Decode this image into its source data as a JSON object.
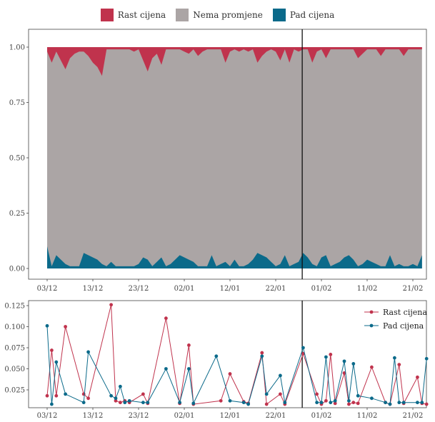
{
  "colors": {
    "rise": "#c0334d",
    "nochange": "#aba5a5",
    "fall": "#0b6a8a"
  },
  "chart_data": [
    {
      "type": "area",
      "stacked": true,
      "ylabel": "",
      "ylim": [
        0,
        1
      ],
      "yticks": [
        "0.00",
        "0.25",
        "0.50",
        "0.75",
        "1.00"
      ],
      "xticks": [
        "03/12",
        "13/12",
        "23/12",
        "02/01",
        "12/01",
        "22/01",
        "01/02",
        "11/02",
        "21/02"
      ],
      "legend_position": "top",
      "vertical_marker_day": 55.8,
      "series": [
        {
          "name": "Pad cijena",
          "days": [
            0,
            1,
            2,
            3,
            4,
            5,
            6,
            7,
            8,
            9,
            10,
            11,
            12,
            13,
            14,
            15,
            16,
            17,
            18,
            19,
            20,
            21,
            22,
            23,
            24,
            25,
            26,
            27,
            28,
            29,
            30,
            31,
            32,
            33,
            34,
            35,
            36,
            37,
            38,
            39,
            40,
            41,
            42,
            43,
            44,
            45,
            46,
            47,
            48,
            49,
            50,
            51,
            52,
            53,
            54,
            55,
            56,
            57,
            58,
            59,
            60,
            61,
            62,
            63,
            64,
            65,
            66,
            67,
            68,
            69,
            70,
            71,
            72,
            73,
            74,
            75,
            76,
            77,
            78,
            79,
            80,
            81,
            82
          ],
          "values": [
            0.1,
            0.01,
            0.06,
            0.04,
            0.02,
            0.01,
            0.01,
            0.01,
            0.07,
            0.06,
            0.05,
            0.04,
            0.02,
            0.01,
            0.03,
            0.01,
            0.01,
            0.01,
            0.01,
            0.01,
            0.02,
            0.05,
            0.04,
            0.01,
            0.03,
            0.05,
            0.01,
            0.02,
            0.04,
            0.06,
            0.05,
            0.04,
            0.03,
            0.01,
            0.01,
            0.01,
            0.06,
            0.01,
            0.02,
            0.03,
            0.01,
            0.04,
            0.01,
            0.01,
            0.02,
            0.04,
            0.07,
            0.06,
            0.05,
            0.03,
            0.01,
            0.02,
            0.06,
            0.01,
            0.02,
            0.03,
            0.07,
            0.05,
            0.02,
            0.01,
            0.05,
            0.06,
            0.01,
            0.02,
            0.03,
            0.05,
            0.06,
            0.04,
            0.01,
            0.02,
            0.04,
            0.03,
            0.02,
            0.01,
            0.01,
            0.06,
            0.01,
            0.02,
            0.01,
            0.01,
            0.02,
            0.01,
            0.06
          ]
        },
        {
          "name": "Rast cijena",
          "days": [
            0,
            1,
            2,
            3,
            4,
            5,
            6,
            7,
            8,
            9,
            10,
            11,
            12,
            13,
            14,
            15,
            16,
            17,
            18,
            19,
            20,
            21,
            22,
            23,
            24,
            25,
            26,
            27,
            28,
            29,
            30,
            31,
            32,
            33,
            34,
            35,
            36,
            37,
            38,
            39,
            40,
            41,
            42,
            43,
            44,
            45,
            46,
            47,
            48,
            49,
            50,
            51,
            52,
            53,
            54,
            55,
            56,
            57,
            58,
            59,
            60,
            61,
            62,
            63,
            64,
            65,
            66,
            67,
            68,
            69,
            70,
            71,
            72,
            73,
            74,
            75,
            76,
            77,
            78,
            79,
            80,
            81,
            82
          ],
          "values": [
            0.02,
            0.07,
            0.02,
            0.06,
            0.1,
            0.05,
            0.03,
            0.02,
            0.02,
            0.04,
            0.07,
            0.09,
            0.13,
            0.01,
            0.01,
            0.01,
            0.01,
            0.01,
            0.01,
            0.02,
            0.01,
            0.06,
            0.11,
            0.05,
            0.03,
            0.08,
            0.01,
            0.01,
            0.01,
            0.01,
            0.02,
            0.03,
            0.01,
            0.04,
            0.02,
            0.01,
            0.01,
            0.01,
            0.01,
            0.07,
            0.02,
            0.01,
            0.02,
            0.01,
            0.02,
            0.01,
            0.07,
            0.04,
            0.02,
            0.01,
            0.02,
            0.06,
            0.01,
            0.07,
            0.01,
            0.02,
            0.01,
            0.01,
            0.07,
            0.02,
            0.01,
            0.05,
            0.01,
            0.01,
            0.01,
            0.01,
            0.01,
            0.01,
            0.05,
            0.03,
            0.01,
            0.01,
            0.01,
            0.04,
            0.01,
            0.01,
            0.01,
            0.01,
            0.04,
            0.01,
            0.01,
            0.01,
            0.01
          ]
        },
        {
          "name": "Nema promjene",
          "note": "remainder to 1.00",
          "values": []
        }
      ]
    },
    {
      "type": "line",
      "ylabel": "",
      "ylim": [
        0.005,
        0.13
      ],
      "yticks": [
        "0.025",
        "0.050",
        "0.075",
        "0.100",
        "0.125"
      ],
      "xticks": [
        "03/12",
        "13/12",
        "23/12",
        "02/01",
        "12/01",
        "22/01",
        "01/02",
        "11/02",
        "21/02"
      ],
      "legend_position": "top-right",
      "vertical_marker_day": 55.8,
      "series": [
        {
          "name": "Rast cijena",
          "points": [
            [
              0,
              0.018
            ],
            [
              1,
              0.072
            ],
            [
              2,
              0.018
            ],
            [
              4,
              0.1
            ],
            [
              8,
              0.02
            ],
            [
              9,
              0.015
            ],
            [
              14,
              0.126
            ],
            [
              15,
              0.012
            ],
            [
              16,
              0.01
            ],
            [
              17,
              0.012
            ],
            [
              18,
              0.01
            ],
            [
              21,
              0.02
            ],
            [
              22,
              0.009
            ],
            [
              26,
              0.11
            ],
            [
              29,
              0.009
            ],
            [
              31,
              0.078
            ],
            [
              32,
              0.008
            ],
            [
              38,
              0.012
            ],
            [
              40,
              0.044
            ],
            [
              43,
              0.011
            ],
            [
              44,
              0.009
            ],
            [
              47,
              0.069
            ],
            [
              48,
              0.008
            ],
            [
              51,
              0.02
            ],
            [
              52,
              0.008
            ],
            [
              56,
              0.068
            ],
            [
              59,
              0.02
            ],
            [
              60,
              0.008
            ],
            [
              61,
              0.012
            ],
            [
              62,
              0.067
            ],
            [
              63,
              0.009
            ],
            [
              65,
              0.045
            ],
            [
              66,
              0.008
            ],
            [
              67,
              0.01
            ],
            [
              68,
              0.009
            ],
            [
              71,
              0.052
            ],
            [
              74,
              0.01
            ],
            [
              75,
              0.008
            ],
            [
              77,
              0.055
            ],
            [
              78,
              0.009
            ],
            [
              81,
              0.04
            ],
            [
              82,
              0.009
            ],
            [
              83,
              0.008
            ]
          ]
        },
        {
          "name": "Pad cijena",
          "points": [
            [
              0,
              0.101
            ],
            [
              1,
              0.008
            ],
            [
              2,
              0.058
            ],
            [
              4,
              0.02
            ],
            [
              8,
              0.01
            ],
            [
              9,
              0.07
            ],
            [
              14,
              0.018
            ],
            [
              15,
              0.015
            ],
            [
              16,
              0.029
            ],
            [
              17,
              0.01
            ],
            [
              18,
              0.012
            ],
            [
              21,
              0.01
            ],
            [
              22,
              0.01
            ],
            [
              26,
              0.05
            ],
            [
              29,
              0.01
            ],
            [
              31,
              0.05
            ],
            [
              32,
              0.009
            ],
            [
              37,
              0.065
            ],
            [
              40,
              0.012
            ],
            [
              43,
              0.01
            ],
            [
              44,
              0.008
            ],
            [
              47,
              0.065
            ],
            [
              48,
              0.02
            ],
            [
              51,
              0.042
            ],
            [
              52,
              0.01
            ],
            [
              56,
              0.075
            ],
            [
              59,
              0.01
            ],
            [
              60,
              0.01
            ],
            [
              61,
              0.064
            ],
            [
              62,
              0.01
            ],
            [
              63,
              0.012
            ],
            [
              65,
              0.059
            ],
            [
              66,
              0.012
            ],
            [
              67,
              0.056
            ],
            [
              68,
              0.018
            ],
            [
              71,
              0.015
            ],
            [
              74,
              0.01
            ],
            [
              75,
              0.008
            ],
            [
              76,
              0.063
            ],
            [
              77,
              0.01
            ],
            [
              78,
              0.01
            ],
            [
              81,
              0.01
            ],
            [
              82,
              0.01
            ],
            [
              83,
              0.062
            ]
          ]
        }
      ]
    }
  ]
}
